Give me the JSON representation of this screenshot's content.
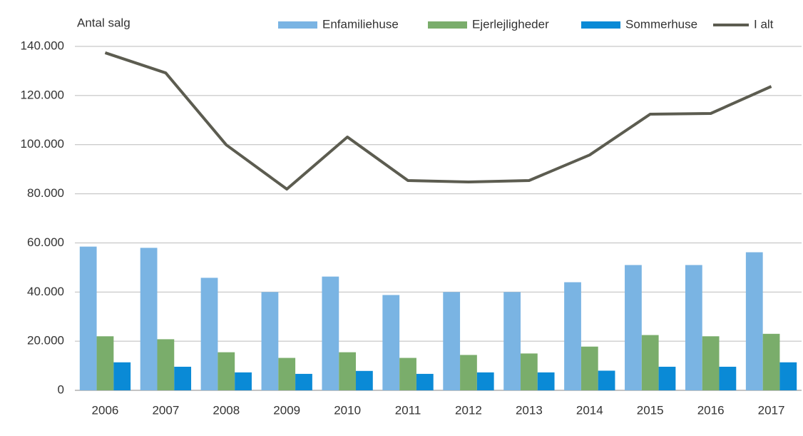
{
  "chart_data": {
    "type": "bar_line",
    "y_label": "Antal salg",
    "categories": [
      "2006",
      "2007",
      "2008",
      "2009",
      "2010",
      "2011",
      "2012",
      "2013",
      "2014",
      "2015",
      "2016",
      "2017"
    ],
    "series": [
      {
        "name": "Enfamiliehuse",
        "type": "bar",
        "color": "#7ab4e3",
        "values": [
          58500,
          58000,
          45800,
          40000,
          46300,
          38800,
          40000,
          40000,
          44000,
          51000,
          51000,
          56200
        ]
      },
      {
        "name": "Ejerlejligheder",
        "type": "bar",
        "color": "#7aad6b",
        "values": [
          22000,
          20800,
          15500,
          13200,
          15500,
          13200,
          14400,
          15000,
          17800,
          22500,
          22000,
          23000
        ]
      },
      {
        "name": "Sommerhuse",
        "type": "bar",
        "color": "#0a8ad6",
        "values": [
          11400,
          9600,
          7300,
          6700,
          7900,
          6700,
          7300,
          7300,
          8000,
          9600,
          9600,
          11400
        ]
      },
      {
        "name": "I alt",
        "type": "line",
        "color": "#5c5c50",
        "values": [
          137400,
          129200,
          99900,
          81900,
          103100,
          85400,
          84800,
          85400,
          95800,
          112400,
          112700,
          123700
        ]
      }
    ],
    "ylim": [
      0,
      140000
    ],
    "yticks": [
      0,
      {
        "value": 20000,
        "label": "20.000"
      },
      {
        "value": 40000,
        "label": "40.000"
      },
      {
        "value": 60000,
        "label": "60.000"
      },
      {
        "value": 80000,
        "label": "80.000"
      },
      {
        "value": 100000,
        "label": "100.000"
      },
      {
        "value": 120000,
        "label": "120.000"
      },
      {
        "value": 140000,
        "label": "140.000"
      }
    ],
    "grid": true,
    "legend": "top-right"
  }
}
